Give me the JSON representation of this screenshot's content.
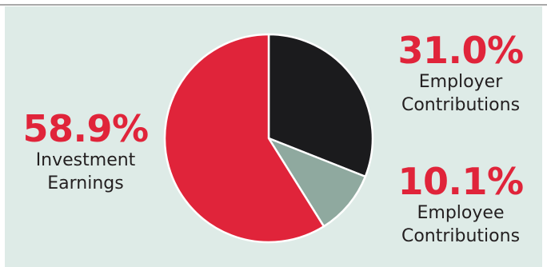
{
  "chart_data": {
    "type": "pie",
    "title": "",
    "slices": [
      {
        "label": "Employer Contributions",
        "percent_text": "31.0%",
        "value": 31.0,
        "color": "#1b1b1d"
      },
      {
        "label": "Employee Contributions",
        "percent_text": "10.1%",
        "value": 10.1,
        "color": "#8fa99f"
      },
      {
        "label": "Investment Earnings",
        "percent_text": "58.9%",
        "value": 58.9,
        "color": "#e0243a"
      }
    ],
    "label_lines": {
      "employer": [
        "Employer",
        "Contributions"
      ],
      "employee": [
        "Employee",
        "Contributions"
      ],
      "earnings": [
        "Investment",
        "Earnings"
      ]
    },
    "colors": {
      "accent": "#e0243a",
      "background": "#deebe7",
      "caption_text": "#231f20",
      "slice_border": "#ffffff"
    }
  }
}
